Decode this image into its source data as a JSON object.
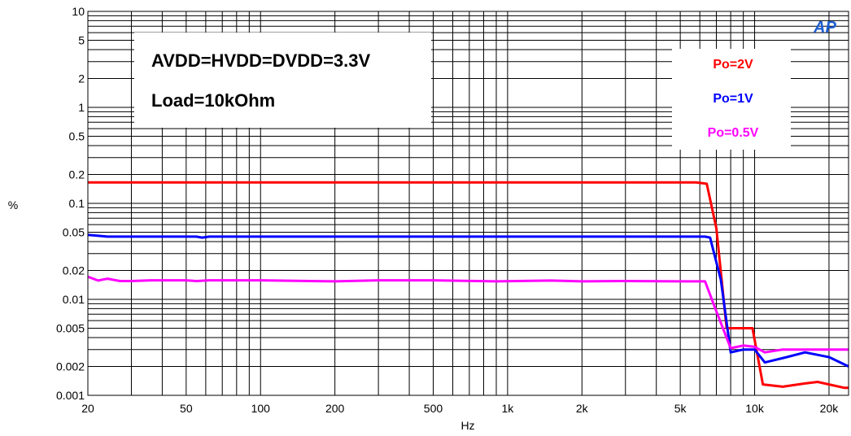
{
  "chart_data": {
    "type": "line",
    "xscale": "log",
    "yscale": "log",
    "xlim": [
      20,
      24000
    ],
    "ylim": [
      0.001,
      10
    ],
    "xlabel": "Hz",
    "ylabel": "%",
    "xticks": [
      20,
      50,
      100,
      200,
      500,
      1000,
      2000,
      5000,
      10000,
      20000
    ],
    "xtick_labels": [
      "20",
      "50",
      "100",
      "200",
      "500",
      "1k",
      "2k",
      "5k",
      "10k",
      "20k"
    ],
    "yticks": [
      10,
      5,
      2,
      1,
      0.5,
      0.2,
      0.1,
      0.05,
      0.02,
      0.01,
      0.005,
      0.002,
      0.001
    ],
    "ytick_labels": [
      "10",
      "5",
      "2",
      "1",
      "0.5",
      "0.2",
      "0.1",
      "0.05",
      "0.02",
      "0.01",
      "0.005",
      "0.002",
      "0.001"
    ],
    "grid": true,
    "annotations": [
      "AVDD=HVDD=DVDD=3.3V",
      "Load=10kOhm"
    ],
    "legend_position": "top-right",
    "series": [
      {
        "name": "Po=2V",
        "color": "#ff0000",
        "points": [
          [
            20,
            0.165
          ],
          [
            100,
            0.165
          ],
          [
            1000,
            0.165
          ],
          [
            5000,
            0.165
          ],
          [
            5800,
            0.165
          ],
          [
            6400,
            0.16
          ],
          [
            7000,
            0.055
          ],
          [
            7700,
            0.005
          ],
          [
            8500,
            0.005
          ],
          [
            9800,
            0.005
          ],
          [
            10800,
            0.0013
          ],
          [
            13000,
            0.00123
          ],
          [
            16000,
            0.00133
          ],
          [
            18000,
            0.00138
          ],
          [
            20000,
            0.0013
          ],
          [
            23000,
            0.0012
          ],
          [
            24000,
            0.0012
          ]
        ]
      },
      {
        "name": "Po=1V",
        "color": "#0000ff",
        "points": [
          [
            20,
            0.047
          ],
          [
            24,
            0.045
          ],
          [
            55,
            0.045
          ],
          [
            58,
            0.044
          ],
          [
            62,
            0.045
          ],
          [
            200,
            0.045
          ],
          [
            1000,
            0.045
          ],
          [
            5000,
            0.045
          ],
          [
            6300,
            0.045
          ],
          [
            6600,
            0.044
          ],
          [
            7300,
            0.016
          ],
          [
            8000,
            0.0028
          ],
          [
            9000,
            0.003
          ],
          [
            10000,
            0.003
          ],
          [
            11000,
            0.0022
          ],
          [
            13500,
            0.0025
          ],
          [
            16000,
            0.0028
          ],
          [
            20000,
            0.0025
          ],
          [
            24000,
            0.002
          ]
        ]
      },
      {
        "name": "Po=0.5V",
        "color": "#ff00ff",
        "points": [
          [
            20,
            0.0172
          ],
          [
            22,
            0.0157
          ],
          [
            24,
            0.0164
          ],
          [
            27,
            0.0155
          ],
          [
            30,
            0.0155
          ],
          [
            36,
            0.0158
          ],
          [
            50,
            0.0158
          ],
          [
            55,
            0.0155
          ],
          [
            62,
            0.0158
          ],
          [
            100,
            0.0158
          ],
          [
            200,
            0.0154
          ],
          [
            300,
            0.0158
          ],
          [
            500,
            0.0158
          ],
          [
            900,
            0.0154
          ],
          [
            1500,
            0.0157
          ],
          [
            2000,
            0.0154
          ],
          [
            3000,
            0.0155
          ],
          [
            5000,
            0.0154
          ],
          [
            6300,
            0.0154
          ],
          [
            7000,
            0.0075
          ],
          [
            8000,
            0.0031
          ],
          [
            9000,
            0.0033
          ],
          [
            10000,
            0.0032
          ],
          [
            11000,
            0.0028
          ],
          [
            13000,
            0.003
          ],
          [
            16000,
            0.003
          ],
          [
            20000,
            0.003
          ],
          [
            24000,
            0.003
          ]
        ]
      }
    ]
  },
  "logo": "AP"
}
